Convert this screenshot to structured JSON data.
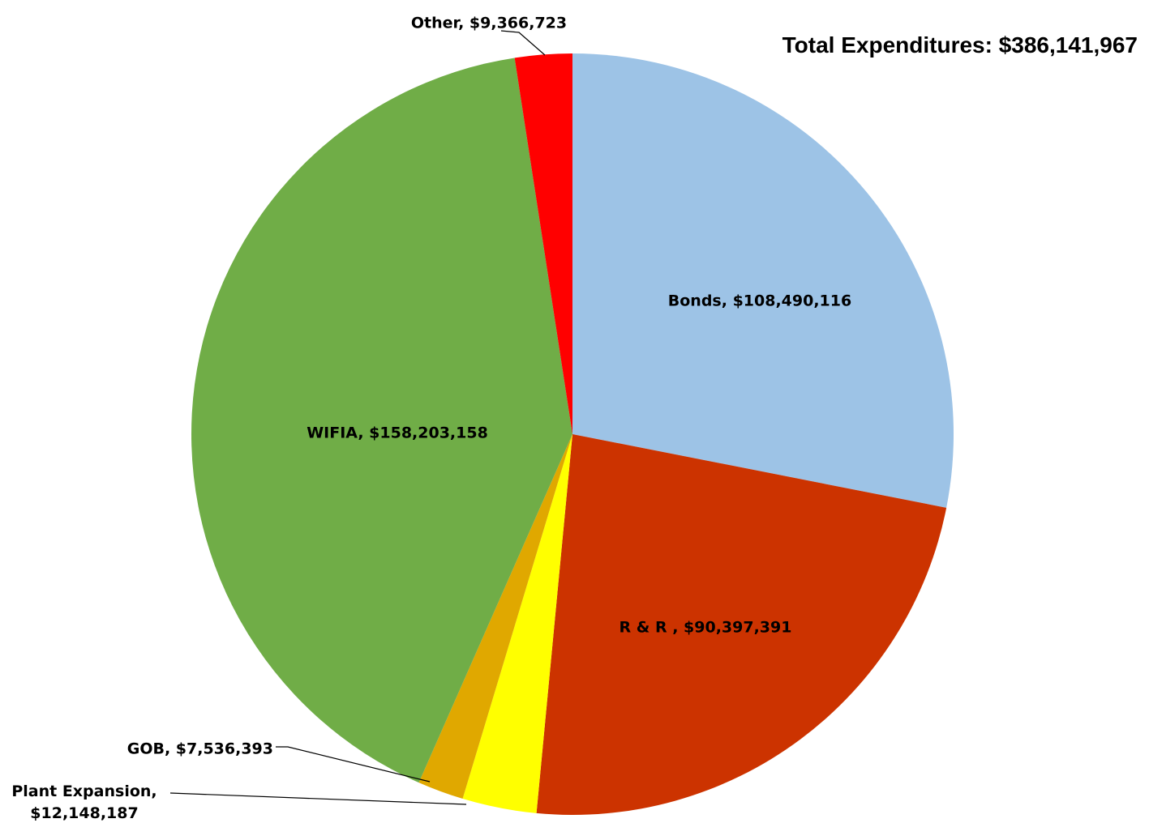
{
  "chart_data": {
    "type": "pie",
    "title": "Total Expenditures: $386,141,967",
    "start_angle_deg": 0,
    "direction": "clockwise",
    "legend": "none",
    "slices": [
      {
        "name": "Bonds",
        "value": 108490116,
        "label": "Bonds, $108,490,116",
        "color": "#9DC3E6"
      },
      {
        "name": "R & R",
        "value": 90397391,
        "label": "R & R , $90,397,391",
        "color": "#CC3300"
      },
      {
        "name": "Plant Expansion",
        "value": 12148187,
        "label": "Plant Expansion, $12,148,187",
        "label_lines": [
          "Plant Expansion,",
          "$12,148,187"
        ],
        "color": "#FFFF00"
      },
      {
        "name": "GOB",
        "value": 7536393,
        "label": "GOB, $7,536,393",
        "color": "#E0A800"
      },
      {
        "name": "WIFIA",
        "value": 158203158,
        "label": "WIFIA, $158,203,158",
        "color": "#70AD47"
      },
      {
        "name": "Other",
        "value": 9366723,
        "label": "Other, $9,366,723",
        "color": "#FF0000"
      }
    ]
  }
}
